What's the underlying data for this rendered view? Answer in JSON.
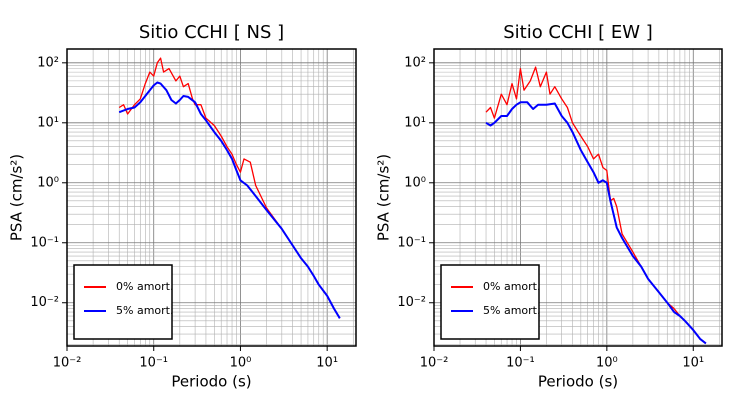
{
  "chart_data": [
    {
      "type": "line",
      "title": "Sitio CCHI [ NS ]",
      "x_label": "Periodo (s)",
      "y_label": "PSA (cm/s²)",
      "log_x": true,
      "log_y": true,
      "grid": true,
      "minor_grid": true,
      "legend": "lower left",
      "xlim": [
        0.01,
        21.5
      ],
      "ylim": [
        0.0019,
        170
      ],
      "xticks": [
        {
          "value": 0.01,
          "label": "10⁻²"
        },
        {
          "value": 0.1,
          "label": "10⁻¹"
        },
        {
          "value": 1,
          "label": "10⁰"
        },
        {
          "value": 10,
          "label": "10¹"
        }
      ],
      "yticks": [
        {
          "value": 0.01,
          "label": "10⁻²"
        },
        {
          "value": 0.1,
          "label": "10⁻¹"
        },
        {
          "value": 1,
          "label": "10⁰"
        },
        {
          "value": 10,
          "label": "10¹"
        },
        {
          "value": 100,
          "label": "10²"
        }
      ],
      "series": [
        {
          "name": "0% amort.",
          "color": "#ff0000",
          "x": [
            0.04,
            0.045,
            0.05,
            0.06,
            0.07,
            0.08,
            0.09,
            0.1,
            0.11,
            0.12,
            0.13,
            0.15,
            0.18,
            0.2,
            0.22,
            0.25,
            0.28,
            0.3,
            0.35,
            0.4,
            0.5,
            0.6,
            0.7,
            0.8,
            0.9,
            1.0,
            1.1,
            1.3,
            1.5,
            2,
            3,
            4,
            5,
            6,
            7,
            8,
            10,
            12,
            14
          ],
          "values": [
            18,
            20,
            14,
            20,
            25,
            45,
            70,
            60,
            100,
            120,
            70,
            80,
            50,
            60,
            40,
            45,
            25,
            20,
            20,
            12,
            9,
            6,
            4,
            3,
            2,
            1.5,
            2.5,
            2.2,
            0.9,
            0.38,
            0.17,
            0.09,
            0.055,
            0.04,
            0.028,
            0.02,
            0.013,
            0.008,
            0.0055
          ]
        },
        {
          "name": "5% amort.",
          "color": "#0000ff",
          "x": [
            0.04,
            0.05,
            0.06,
            0.07,
            0.08,
            0.09,
            0.1,
            0.11,
            0.12,
            0.14,
            0.16,
            0.18,
            0.2,
            0.22,
            0.25,
            0.3,
            0.35,
            0.4,
            0.5,
            0.6,
            0.7,
            0.8,
            0.9,
            1.0,
            1.2,
            1.5,
            2,
            3,
            4,
            5,
            6,
            7,
            8,
            10,
            12,
            14
          ],
          "values": [
            15,
            17,
            18,
            22,
            28,
            35,
            42,
            47,
            45,
            35,
            24,
            21,
            24,
            28,
            27,
            22,
            14,
            11,
            7,
            5,
            3.5,
            2.5,
            1.6,
            1.1,
            0.9,
            0.6,
            0.35,
            0.17,
            0.09,
            0.055,
            0.04,
            0.028,
            0.02,
            0.013,
            0.008,
            0.0055
          ]
        }
      ]
    },
    {
      "type": "line",
      "title": "Sitio CCHI [ EW ]",
      "x_label": "Periodo (s)",
      "y_label": "PSA (cm/s²)",
      "log_x": true,
      "log_y": true,
      "grid": true,
      "minor_grid": true,
      "legend": "lower left",
      "xlim": [
        0.01,
        21.5
      ],
      "ylim": [
        0.0019,
        170
      ],
      "xticks": [
        {
          "value": 0.01,
          "label": "10⁻²"
        },
        {
          "value": 0.1,
          "label": "10⁻¹"
        },
        {
          "value": 1,
          "label": "10⁰"
        },
        {
          "value": 10,
          "label": "10¹"
        }
      ],
      "yticks": [
        {
          "value": 0.01,
          "label": "10⁻²"
        },
        {
          "value": 0.1,
          "label": "10⁻¹"
        },
        {
          "value": 1,
          "label": "10⁰"
        },
        {
          "value": 10,
          "label": "10¹"
        },
        {
          "value": 100,
          "label": "10²"
        }
      ],
      "series": [
        {
          "name": "0% amort.",
          "color": "#ff0000",
          "x": [
            0.04,
            0.045,
            0.05,
            0.06,
            0.07,
            0.08,
            0.09,
            0.1,
            0.11,
            0.13,
            0.15,
            0.17,
            0.2,
            0.22,
            0.25,
            0.3,
            0.35,
            0.4,
            0.5,
            0.6,
            0.7,
            0.8,
            0.9,
            1.0,
            1.1,
            1.2,
            1.3,
            1.5,
            2,
            2.5,
            3,
            4,
            5,
            6,
            7,
            8,
            10,
            12,
            14
          ],
          "values": [
            15,
            18,
            12,
            30,
            20,
            45,
            25,
            80,
            35,
            50,
            85,
            40,
            70,
            30,
            40,
            25,
            18,
            10,
            6,
            4,
            2.5,
            3,
            1.8,
            1.6,
            0.5,
            0.55,
            0.4,
            0.14,
            0.07,
            0.04,
            0.025,
            0.015,
            0.01,
            0.008,
            0.006,
            0.005,
            0.0035,
            0.0025,
            0.0021
          ]
        },
        {
          "name": "5% amort.",
          "color": "#0000ff",
          "x": [
            0.04,
            0.045,
            0.05,
            0.06,
            0.07,
            0.08,
            0.09,
            0.1,
            0.12,
            0.14,
            0.16,
            0.2,
            0.25,
            0.3,
            0.35,
            0.4,
            0.5,
            0.6,
            0.7,
            0.8,
            0.9,
            1.0,
            1.1,
            1.3,
            1.5,
            2,
            2.5,
            3,
            4,
            5,
            6,
            7,
            8,
            10,
            12,
            14
          ],
          "values": [
            10,
            9,
            10,
            13,
            13,
            17,
            20,
            22,
            22,
            17,
            20,
            20,
            21,
            13,
            10,
            7,
            3.5,
            2.2,
            1.5,
            1,
            1.1,
            1,
            0.5,
            0.18,
            0.12,
            0.06,
            0.04,
            0.025,
            0.015,
            0.01,
            0.007,
            0.006,
            0.005,
            0.0035,
            0.0025,
            0.0021
          ]
        }
      ]
    }
  ]
}
